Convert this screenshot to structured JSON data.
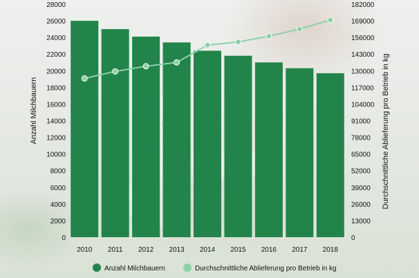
{
  "chart_data": {
    "type": "bar+line",
    "categories": [
      "2010",
      "2011",
      "2012",
      "2013",
      "2014",
      "2015",
      "2016",
      "2017",
      "2018"
    ],
    "series": [
      {
        "name": "Anzahl Milchbauern",
        "type": "bar",
        "axis": "left",
        "values": [
          26000,
          25000,
          24100,
          23400,
          22400,
          21800,
          21000,
          20300,
          19700
        ],
        "color": "#22844a"
      },
      {
        "name": "Durchschnittliche Ablieferung pro Betrieb in kg",
        "type": "line",
        "axis": "right",
        "values": [
          124000,
          129500,
          133500,
          136500,
          150000,
          152500,
          157000,
          162500,
          169500
        ],
        "color": "#8ed0a8"
      }
    ],
    "ylabel": "Anzahl Milchbauern",
    "y2label": "Durchschnittliche Ablieferung pro Betrieb in kg",
    "ylim": [
      0,
      28000
    ],
    "y2lim": [
      0,
      182000
    ],
    "yticks": [
      "0",
      "2000",
      "4000",
      "6000",
      "8000",
      "10000",
      "12000",
      "14000",
      "16000",
      "18000",
      "20000",
      "22000",
      "24000",
      "26000",
      "28000"
    ],
    "y2ticks": [
      "0",
      "13000",
      "26000",
      "39000",
      "52000",
      "65000",
      "78000",
      "91000",
      "104000",
      "117000",
      "130000",
      "143000",
      "156000",
      "169000",
      "182000"
    ],
    "grid": false,
    "legend": "bottom"
  }
}
